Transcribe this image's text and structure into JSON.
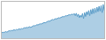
{
  "chart_data": {
    "type": "area",
    "values": [
      18,
      20,
      19,
      21,
      22,
      20,
      23,
      25,
      24,
      26,
      25,
      27,
      28,
      26,
      29,
      28,
      30,
      31,
      29,
      32,
      31,
      33,
      35,
      34,
      36,
      35,
      37,
      38,
      36,
      39,
      40,
      42,
      41,
      43,
      45,
      44,
      46,
      48,
      47,
      49,
      50,
      52,
      51,
      53,
      55,
      57,
      56,
      58,
      60,
      62,
      61,
      63,
      65,
      64,
      66,
      68,
      67,
      69,
      70,
      72,
      71,
      73,
      75,
      74,
      76,
      78,
      77,
      79,
      80,
      78,
      82,
      75,
      83,
      72,
      80,
      68,
      76,
      70,
      82,
      65,
      85,
      72,
      88,
      78,
      92,
      75,
      95,
      80,
      98,
      82,
      100,
      85,
      103,
      88,
      106,
      90,
      108,
      85,
      112,
      92
    ],
    "color": "#5b9dc9",
    "xlim": [
      0,
      99
    ],
    "ylim": [
      0,
      120.96
    ],
    "tick_labels": false,
    "grid": false
  }
}
